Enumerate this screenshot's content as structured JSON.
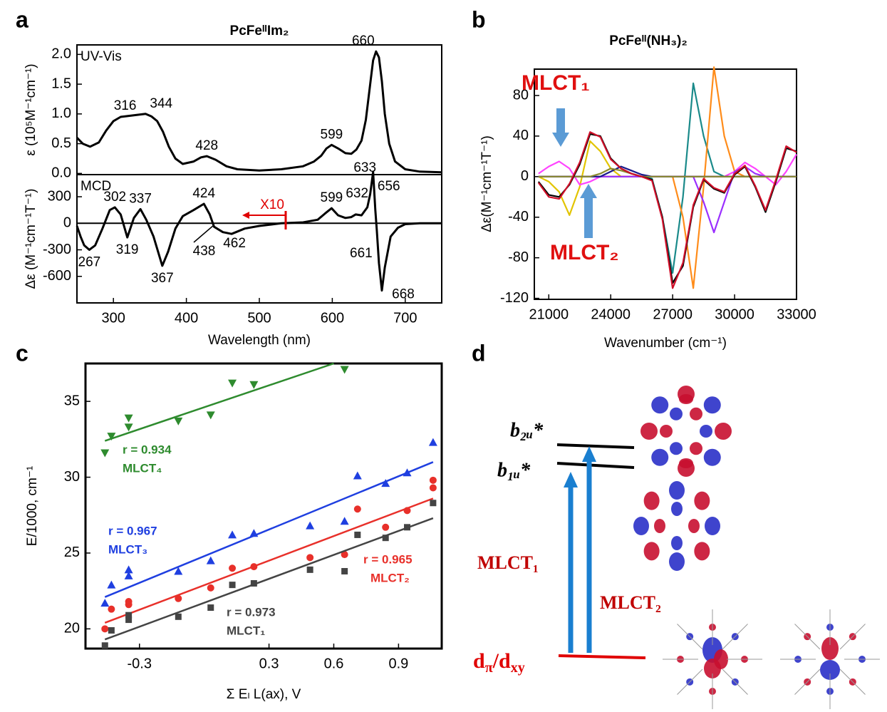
{
  "chart_data": [
    {
      "type": "line",
      "panel_label": "a",
      "title": "PcFeᴵᴵIm₂",
      "ylabel": "ε (10⁵M⁻¹cm⁻¹)",
      "inset_label": "UV-Vis",
      "x": [
        250,
        258,
        268,
        280,
        290,
        300,
        310,
        316,
        330,
        344,
        352,
        360,
        368,
        376,
        385,
        395,
        410,
        420,
        428,
        440,
        455,
        470,
        500,
        530,
        560,
        575,
        585,
        592,
        599,
        608,
        618,
        626,
        633,
        640,
        646,
        652,
        656,
        660,
        664,
        668,
        672,
        678,
        686,
        700,
        720,
        750
      ],
      "series": [
        {
          "color": "#000000",
          "values": [
            0.6,
            0.5,
            0.45,
            0.52,
            0.72,
            0.88,
            0.95,
            0.96,
            0.98,
            1.0,
            0.96,
            0.88,
            0.7,
            0.45,
            0.25,
            0.16,
            0.2,
            0.27,
            0.29,
            0.23,
            0.12,
            0.07,
            0.05,
            0.07,
            0.12,
            0.2,
            0.3,
            0.42,
            0.48,
            0.42,
            0.34,
            0.33,
            0.4,
            0.55,
            0.9,
            1.5,
            1.9,
            2.05,
            1.95,
            1.55,
            1.0,
            0.5,
            0.2,
            0.07,
            0.03,
            0.02
          ]
        }
      ],
      "xlim": [
        250,
        750
      ],
      "ylim": [
        -0.02,
        2.16
      ],
      "yticks": [
        {
          "value": 0,
          "label": "0.0"
        },
        {
          "value": 0.5,
          "label": "0.5"
        },
        {
          "value": 1,
          "label": "1.0"
        },
        {
          "value": 1.5,
          "label": "1.5"
        },
        {
          "value": 2,
          "label": "2.0"
        }
      ],
      "peaks_above": [
        316,
        344,
        428,
        599,
        660
      ],
      "peaks_below": [
        633
      ]
    },
    {
      "type": "line",
      "ylabel": "Δε (M⁻¹cm⁻¹T⁻¹)",
      "xlabel": "Wavelength (nm)",
      "inset_label": "MCD",
      "annotation": "X10",
      "zero_line": true,
      "x": [
        250,
        255,
        260,
        267,
        275,
        285,
        295,
        302,
        310,
        319,
        328,
        337,
        345,
        355,
        367,
        375,
        385,
        395,
        410,
        424,
        432,
        438,
        450,
        462,
        480,
        500,
        530,
        560,
        580,
        590,
        599,
        608,
        618,
        626,
        632,
        640,
        648,
        652,
        656,
        659,
        661,
        664,
        668,
        672,
        680,
        690,
        700,
        720,
        750
      ],
      "series": [
        {
          "color": "#000000",
          "values": [
            -30,
            -150,
            -250,
            -300,
            -250,
            -60,
            150,
            180,
            100,
            -160,
            60,
            160,
            40,
            -150,
            -480,
            -320,
            -60,
            80,
            150,
            220,
            100,
            -40,
            -100,
            -120,
            -60,
            -30,
            0,
            10,
            40,
            110,
            170,
            90,
            60,
            70,
            100,
            90,
            180,
            330,
            580,
            150,
            -80,
            -450,
            -760,
            -500,
            -150,
            -50,
            -10,
            0,
            0
          ]
        }
      ],
      "xlim": [
        250,
        750
      ],
      "ylim": [
        -900,
        550
      ],
      "xticks": [
        300,
        400,
        500,
        600,
        700
      ],
      "yticks": [
        -600,
        -300,
        0,
        300
      ],
      "peaks_above": [
        302,
        337,
        424,
        599,
        632,
        656
      ],
      "peaks_below": [
        267,
        319,
        367,
        438,
        462,
        661,
        668
      ]
    },
    {
      "type": "line",
      "panel_label": "b",
      "title": "PcFeᴵᴵ(NH₃)₂",
      "xlabel": "Wavenumber (cm⁻¹)",
      "ylabel": "Δε(M⁻¹cm⁻¹T⁻¹)",
      "annotations": [
        "MLCT₁",
        "MLCT₂"
      ],
      "x": [
        20500,
        21000,
        21500,
        22000,
        22500,
        23000,
        23500,
        24000,
        24500,
        25000,
        25500,
        26000,
        26500,
        27000,
        27500,
        28000,
        28500,
        29000,
        29500,
        30000,
        30500,
        31000,
        31500,
        32000,
        32500,
        33000
      ],
      "series": [
        {
          "color": "#e2c400",
          "values": [
            0,
            -5,
            -15,
            -38,
            -10,
            35,
            25,
            8,
            0,
            0,
            0,
            0,
            0,
            0,
            0,
            0,
            0,
            0,
            0,
            0,
            0,
            0,
            0,
            0,
            0,
            0
          ]
        },
        {
          "color": "#ff44ff",
          "values": [
            3,
            10,
            15,
            8,
            -8,
            -5,
            0,
            0,
            0,
            0,
            0,
            0,
            0,
            0,
            0,
            0,
            0,
            0,
            0,
            5,
            14,
            8,
            0,
            -8,
            5,
            22
          ]
        },
        {
          "color": "#1a8a8a",
          "values": [
            0,
            0,
            0,
            0,
            0,
            0,
            0,
            0,
            0,
            0,
            0,
            -2,
            -40,
            -95,
            -20,
            92,
            40,
            5,
            0,
            0,
            0,
            0,
            0,
            0,
            0,
            0
          ]
        },
        {
          "color": "#ff8c1a",
          "values": [
            0,
            0,
            0,
            0,
            0,
            0,
            0,
            0,
            0,
            0,
            0,
            0,
            0,
            0,
            -40,
            -110,
            -10,
            108,
            40,
            5,
            0,
            0,
            0,
            0,
            0,
            0
          ]
        },
        {
          "color": "#9b30ff",
          "values": [
            0,
            0,
            0,
            0,
            0,
            0,
            0,
            0,
            0,
            0,
            0,
            0,
            0,
            0,
            0,
            0,
            -25,
            -55,
            -25,
            5,
            10,
            3,
            0,
            0,
            0,
            0
          ]
        },
        {
          "color": "#1a1a8c",
          "values": [
            0,
            0,
            0,
            0,
            0,
            0,
            0,
            5,
            10,
            6,
            2,
            0,
            0,
            0,
            0,
            0,
            0,
            0,
            0,
            0,
            0,
            0,
            0,
            0,
            0,
            0
          ]
        },
        {
          "color": "#8a8a30",
          "values": [
            0,
            0,
            0,
            0,
            0,
            0,
            3,
            8,
            6,
            3,
            0,
            0,
            0,
            0,
            0,
            0,
            0,
            0,
            0,
            0,
            0,
            0,
            0,
            0,
            0,
            0
          ]
        },
        {
          "color": "#000000",
          "values": [
            -5,
            -18,
            -20,
            -8,
            12,
            42,
            40,
            18,
            8,
            3,
            0,
            -3,
            -40,
            -105,
            -88,
            -30,
            -3,
            -12,
            -16,
            2,
            10,
            -10,
            -35,
            -5,
            28,
            25
          ]
        },
        {
          "color": "#d0102a",
          "values": [
            -6,
            -20,
            -22,
            -7,
            14,
            44,
            39,
            17,
            8,
            3,
            0,
            -4,
            -42,
            -110,
            -85,
            -28,
            -2,
            -11,
            -15,
            3,
            11,
            -9,
            -33,
            -3,
            30,
            24
          ]
        }
      ],
      "xlim": [
        20300,
        33000
      ],
      "ylim": [
        -121,
        106
      ],
      "xticks": [
        21000,
        24000,
        27000,
        30000,
        33000
      ],
      "yticks": [
        -120,
        -80,
        -40,
        0,
        40,
        80
      ]
    },
    {
      "type": "scatter",
      "panel_label": "c",
      "xlabel": "Σ Eₗ L(ax), V",
      "ylabel": "E/1000, cm⁻¹",
      "xlim": [
        -0.55,
        1.1
      ],
      "ylim": [
        18.7,
        37.5
      ],
      "xticks": [
        -0.3,
        0.3,
        0.6,
        0.9
      ],
      "yticks": [
        20,
        25,
        30,
        35
      ],
      "series": [
        {
          "name": "MLCT₄",
          "r_label": "r = 0.934",
          "color": "#2e8b2e",
          "marker": "triangle-down",
          "x": [
            -0.46,
            -0.43,
            -0.35,
            -0.35,
            -0.12,
            0.03,
            0.13,
            0.23,
            0.65
          ],
          "values": [
            31.6,
            32.7,
            33.3,
            33.9,
            33.7,
            34.1,
            36.2,
            36.1,
            37.1
          ],
          "fit_x": [
            -0.46,
            0.6
          ],
          "fit_y": [
            32.4,
            37.5
          ]
        },
        {
          "name": "MLCT₃",
          "r_label": "r = 0.967",
          "color": "#1f3fe0",
          "marker": "triangle-up",
          "x": [
            -0.46,
            -0.43,
            -0.35,
            -0.35,
            -0.12,
            0.03,
            0.13,
            0.23,
            0.49,
            0.65,
            0.71,
            0.84,
            0.94,
            1.06
          ],
          "values": [
            21.7,
            22.9,
            23.5,
            23.9,
            23.8,
            24.5,
            26.2,
            26.3,
            26.8,
            27.1,
            30.1,
            29.6,
            30.3,
            32.3
          ],
          "fit_x": [
            -0.46,
            1.06
          ],
          "fit_y": [
            22.1,
            31.0
          ]
        },
        {
          "name": "MLCT₂",
          "r_label": "r = 0.965",
          "color": "#e8302a",
          "marker": "circle",
          "x": [
            -0.46,
            -0.43,
            -0.35,
            -0.35,
            -0.12,
            0.03,
            0.13,
            0.23,
            0.49,
            0.65,
            0.71,
            0.84,
            0.94,
            1.06,
            1.06
          ],
          "values": [
            20.0,
            21.3,
            21.6,
            21.8,
            22.0,
            22.7,
            24.0,
            24.1,
            24.7,
            24.9,
            27.9,
            26.7,
            27.8,
            29.3,
            29.8
          ],
          "fit_x": [
            -0.46,
            1.06
          ],
          "fit_y": [
            20.4,
            28.6
          ]
        },
        {
          "name": "MLCT₁",
          "r_label": "r = 0.973",
          "color": "#444444",
          "marker": "square",
          "x": [
            -0.46,
            -0.43,
            -0.35,
            -0.35,
            -0.12,
            0.03,
            0.13,
            0.23,
            0.49,
            0.65,
            0.71,
            0.84,
            0.94,
            1.06
          ],
          "values": [
            18.9,
            19.9,
            20.6,
            20.9,
            20.8,
            21.4,
            22.9,
            23.0,
            23.9,
            23.8,
            26.2,
            26.0,
            26.7,
            28.3
          ],
          "fit_x": [
            -0.46,
            1.06
          ],
          "fit_y": [
            19.3,
            27.3
          ]
        }
      ]
    }
  ],
  "diagram": {
    "panel_label": "d",
    "levels": [
      "b₂ᵤ*",
      "b₁ᵤ*"
    ],
    "ground": [
      "d",
      "π",
      "/d",
      "xy"
    ],
    "transitions": [
      "MLCT₁",
      "MLCT₂"
    ]
  }
}
